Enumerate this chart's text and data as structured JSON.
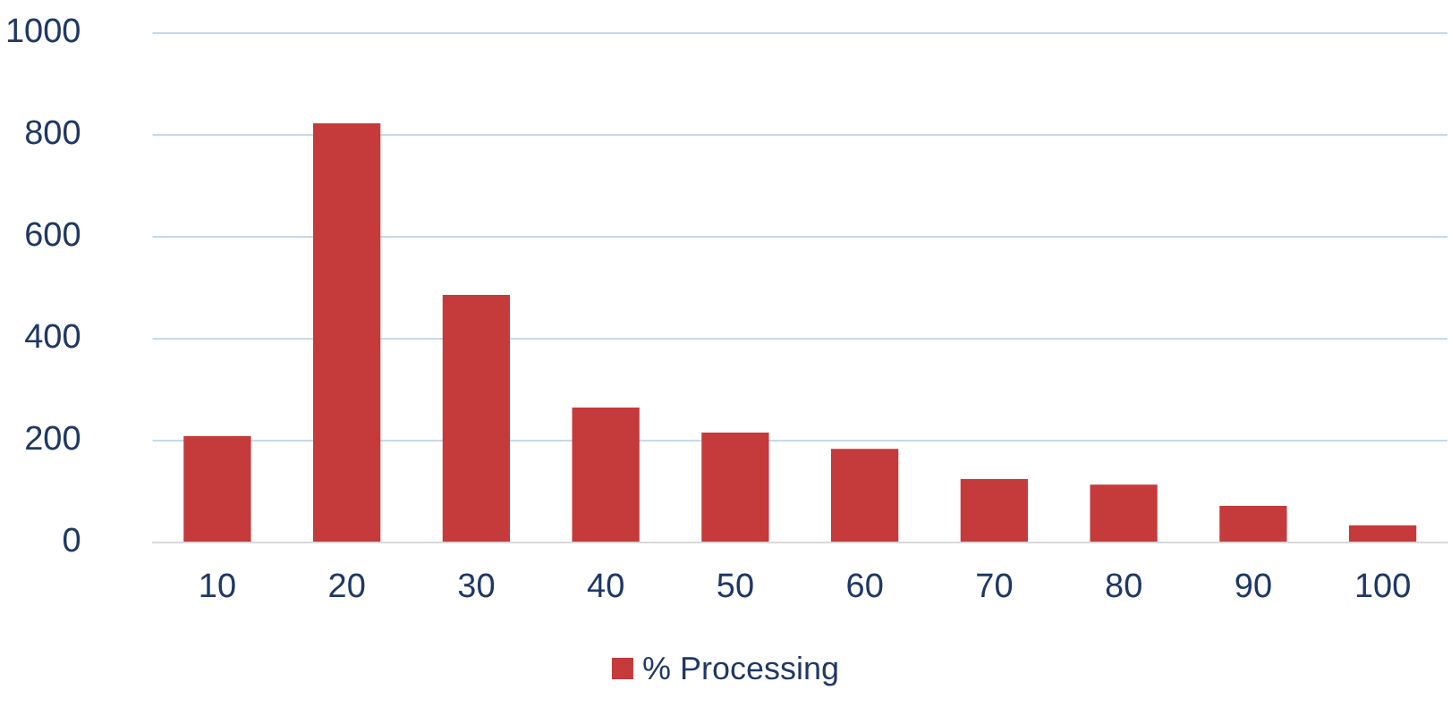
{
  "chart_data": {
    "type": "bar",
    "categories": [
      "10",
      "20",
      "30",
      "40",
      "50",
      "60",
      "70",
      "80",
      "90",
      "100"
    ],
    "series": [
      {
        "name": "% Processing",
        "color": "#c53a3a",
        "values": [
          207,
          821,
          484,
          263,
          214,
          182,
          123,
          112,
          70,
          32
        ]
      }
    ],
    "ylim": [
      0,
      1000
    ],
    "yticks": [
      0,
      200,
      400,
      600,
      800,
      1000
    ],
    "grid": "y",
    "legend": "bottom"
  }
}
